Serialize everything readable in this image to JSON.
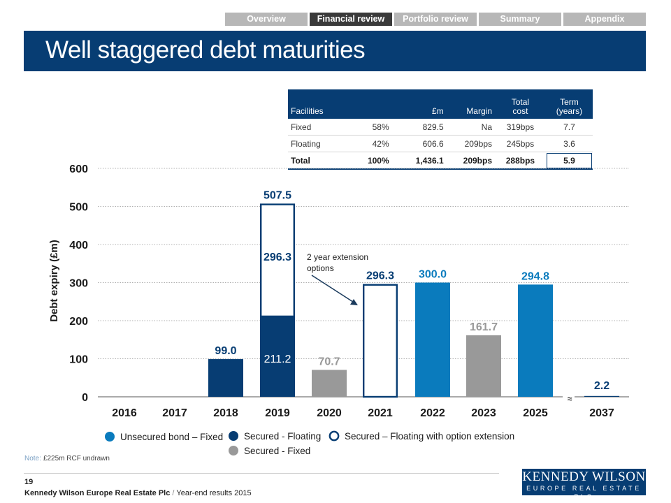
{
  "nav": {
    "tabs": [
      {
        "label": "Overview",
        "active": false
      },
      {
        "label": "Financial review",
        "active": true
      },
      {
        "label": "Portfolio review",
        "active": false
      },
      {
        "label": "Summary",
        "active": false
      },
      {
        "label": "Appendix",
        "active": false
      }
    ]
  },
  "page": {
    "title": "Well staggered debt maturities"
  },
  "table": {
    "headers": [
      "Facilities",
      "",
      "£m",
      "Margin",
      "Total\ncost",
      "Term\n(years)"
    ],
    "rows": [
      [
        "Fixed",
        "58%",
        "829.5",
        "Na",
        "319bps",
        "7.7"
      ],
      [
        "Floating",
        "42%",
        "606.6",
        "209bps",
        "245bps",
        "3.6"
      ]
    ],
    "total": [
      "Total",
      "100%",
      "1,436.1",
      "209bps",
      "288bps",
      "5.9"
    ]
  },
  "chart_data": {
    "type": "bar",
    "ylabel": "Debt expiry (£m)",
    "ylim": [
      0,
      600
    ],
    "yticks": [
      0,
      100,
      200,
      300,
      400,
      500,
      600
    ],
    "grid": true,
    "categories": [
      "2016",
      "2017",
      "2018",
      "2019",
      "2020",
      "2021",
      "2022",
      "2023",
      "2025",
      "2037"
    ],
    "bars": [
      {
        "category": "2018",
        "segments": [
          {
            "type": "Secured - Floating",
            "value": 99.0
          }
        ],
        "label": "99.0"
      },
      {
        "category": "2019",
        "segments": [
          {
            "type": "Secured - Floating",
            "value": 211.2,
            "label": "211.2"
          },
          {
            "type": "Secured – Floating with option extension",
            "value": 296.3,
            "label": "296.3"
          }
        ],
        "label": "507.5"
      },
      {
        "category": "2020",
        "segments": [
          {
            "type": "Secured - Fixed",
            "value": 70.7
          }
        ],
        "label": "70.7"
      },
      {
        "category": "2021",
        "segments": [
          {
            "type": "Secured – Floating with option extension",
            "value": 296.3
          }
        ],
        "label": "296.3"
      },
      {
        "category": "2022",
        "segments": [
          {
            "type": "Unsecured bond – Fixed",
            "value": 300.0
          }
        ],
        "label": "300.0"
      },
      {
        "category": "2023",
        "segments": [
          {
            "type": "Secured - Fixed",
            "value": 161.7
          }
        ],
        "label": "161.7"
      },
      {
        "category": "2025",
        "segments": [
          {
            "type": "Unsecured bond – Fixed",
            "value": 294.8
          }
        ],
        "label": "294.8"
      },
      {
        "category": "2037",
        "segments": [
          {
            "type": "Secured - Floating",
            "value": 2.2
          }
        ],
        "label": "2.2"
      }
    ],
    "legend": [
      {
        "label": "Unsecured bond – Fixed",
        "color": "#0a7bbd",
        "style": "filled"
      },
      {
        "label": "Secured - Floating",
        "color": "#073d73",
        "style": "filled"
      },
      {
        "label": "Secured - Fixed",
        "color": "#999999",
        "style": "filled"
      },
      {
        "label": "Secured – Floating with option extension",
        "color": "#073d73",
        "style": "outline"
      }
    ],
    "annotation": "2 year extension options",
    "axis_break_symbol": "≈"
  },
  "note": {
    "label": "Note:",
    "text": "£225m RCF undrawn"
  },
  "footer": {
    "page_number": "19",
    "company": "Kennedy Wilson Europe Real Estate Plc",
    "separator": "/",
    "doc": "Year-end results 2015"
  },
  "logo": {
    "line1": "KENNEDY WILSON",
    "line2": "EUROPE REAL ESTATE PLC"
  }
}
